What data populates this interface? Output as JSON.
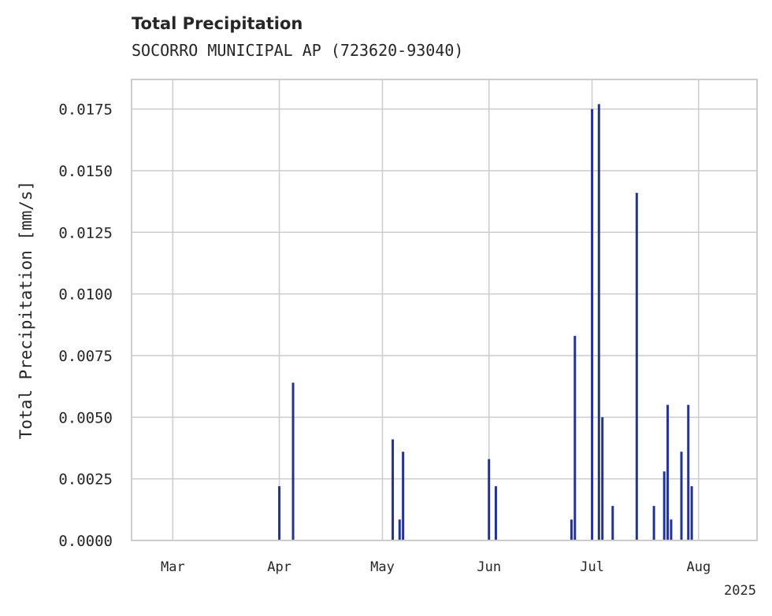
{
  "chart_data": {
    "type": "bar",
    "title": "Total Precipitation",
    "subtitle": "SOCORRO MUNICIPAL AP (723620-93040)",
    "ylabel": "Total Precipitation [mm/s]",
    "xlabel": "",
    "ylim": [
      0,
      0.0187
    ],
    "xlim": [
      "2025-02-17",
      "2025-08-18"
    ],
    "yticks": [
      "0.0000",
      "0.0025",
      "0.0050",
      "0.0075",
      "0.0100",
      "0.0125",
      "0.0150",
      "0.0175"
    ],
    "ytick_values": [
      0,
      0.0025,
      0.005,
      0.0075,
      0.01,
      0.0125,
      0.015,
      0.0175
    ],
    "xticks": [
      {
        "date": "2025-03-01",
        "label": "Mar"
      },
      {
        "date": "2025-04-01",
        "label": "Apr"
      },
      {
        "date": "2025-05-01",
        "label": "May"
      },
      {
        "date": "2025-06-01",
        "label": "Jun"
      },
      {
        "date": "2025-07-01",
        "label": "Jul"
      },
      {
        "date": "2025-08-01",
        "label": "Aug"
      }
    ],
    "year_label": "2025",
    "grid": true,
    "color": "#24338f",
    "x": [
      "2025-04-01",
      "2025-04-05",
      "2025-05-04",
      "2025-05-06",
      "2025-05-07",
      "2025-06-01",
      "2025-06-03",
      "2025-06-25",
      "2025-06-26",
      "2025-07-01",
      "2025-07-03",
      "2025-07-04",
      "2025-07-07",
      "2025-07-14",
      "2025-07-19",
      "2025-07-22",
      "2025-07-23",
      "2025-07-24",
      "2025-07-27",
      "2025-07-29",
      "2025-07-30"
    ],
    "values": [
      0.0022,
      0.0064,
      0.0041,
      0.00085,
      0.0036,
      0.0033,
      0.0022,
      0.00085,
      0.0083,
      0.0175,
      0.0177,
      0.005,
      0.0014,
      0.0141,
      0.0014,
      0.0028,
      0.0055,
      0.00085,
      0.0036,
      0.0055,
      0.0022
    ]
  }
}
